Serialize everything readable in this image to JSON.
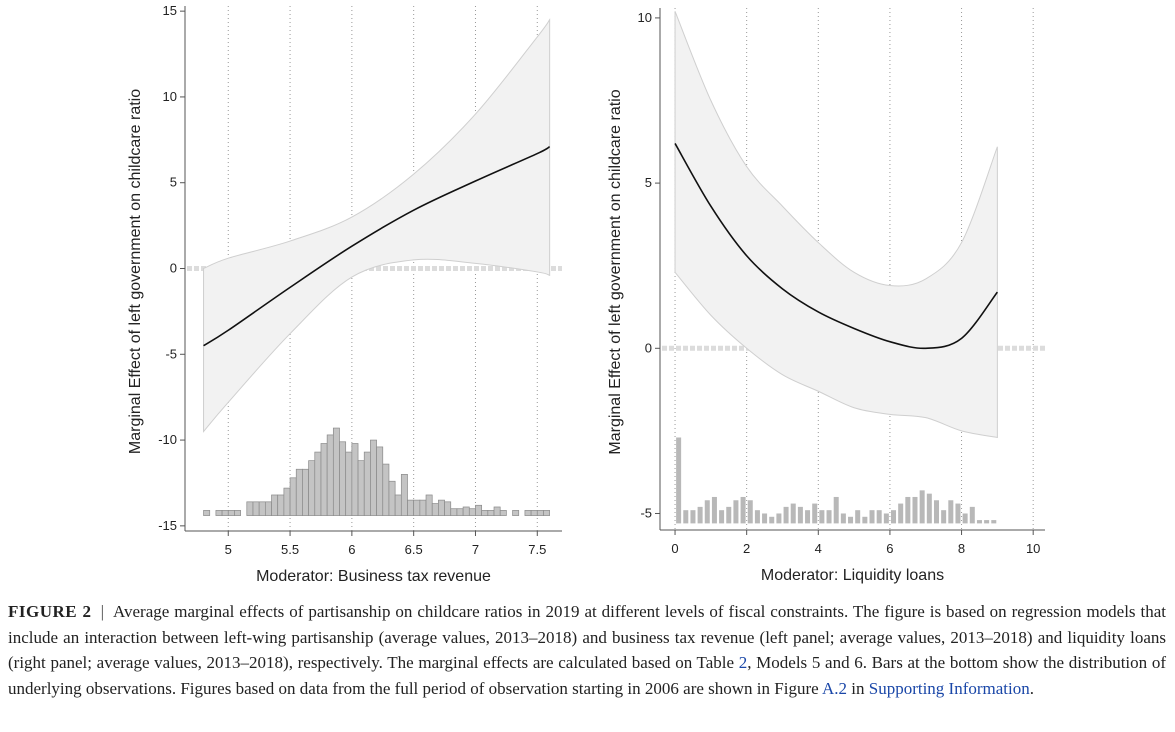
{
  "chart_data": [
    {
      "type": "line",
      "xlabel": "Moderator: Business tax revenue",
      "ylabel": "Marginal Effect of left government on childcare ratio",
      "xlim": [
        4.65,
        7.7
      ],
      "ylim": [
        -15.3,
        15.3
      ],
      "xticks": [
        5,
        5.5,
        6,
        6.5,
        7,
        7.5
      ],
      "yticks": [
        -15,
        -10,
        -5,
        0,
        5,
        10,
        15
      ],
      "grid_x": true,
      "ref_line": 0,
      "color": "#111111",
      "band_color": "#f2f2f2",
      "hist_color": "#c4c4c4",
      "x": [
        4.8,
        5,
        5.5,
        6,
        6.5,
        7,
        7.5,
        7.6
      ],
      "values": [
        -4.5,
        -3.6,
        -1.1,
        1.3,
        3.4,
        5.1,
        6.7,
        7.1
      ],
      "ci_upper": [
        0.0,
        0.6,
        1.6,
        3.0,
        5.5,
        9.0,
        13.5,
        14.5
      ],
      "ci_lower": [
        -9.5,
        -7.8,
        -3.8,
        -0.5,
        0.5,
        0.3,
        -0.2,
        -0.4
      ],
      "hist": {
        "base": -14.4,
        "bins": [
          4.8,
          4.85,
          4.9,
          4.95,
          5,
          5.05,
          5.1,
          5.15,
          5.2,
          5.25,
          5.3,
          5.35,
          5.4,
          5.45,
          5.5,
          5.55,
          5.6,
          5.65,
          5.7,
          5.75,
          5.8,
          5.85,
          5.9,
          5.95,
          6,
          6.05,
          6.1,
          6.15,
          6.2,
          6.25,
          6.3,
          6.35,
          6.4,
          6.45,
          6.5,
          6.55,
          6.6,
          6.65,
          6.7,
          6.75,
          6.8,
          6.85,
          6.9,
          6.95,
          7,
          7.05,
          7.1,
          7.15,
          7.2,
          7.25,
          7.3,
          7.35,
          7.4,
          7.45,
          7.5,
          7.55,
          7.6
        ],
        "values": [
          -14.1,
          -14.4,
          -14.1,
          -14.1,
          -14.1,
          -14.1,
          -14.4,
          -13.6,
          -13.6,
          -13.6,
          -13.6,
          -13.2,
          -13.2,
          -12.8,
          -12.2,
          -11.7,
          -11.7,
          -11.2,
          -10.7,
          -10.2,
          -9.7,
          -9.3,
          -10.1,
          -10.7,
          -10.2,
          -11.2,
          -10.7,
          -10.0,
          -10.4,
          -11.4,
          -12.4,
          -13.2,
          -12.0,
          -13.5,
          -13.5,
          -13.5,
          -13.2,
          -13.7,
          -13.5,
          -13.6,
          -14.0,
          -14.0,
          -13.9,
          -14.0,
          -13.8,
          -14.1,
          -14.1,
          -13.9,
          -14.1,
          -14.4,
          -14.1,
          -14.4,
          -14.1,
          -14.1,
          -14.1,
          -14.1
        ]
      }
    },
    {
      "type": "line",
      "xlabel": "Moderator: Liquidity loans",
      "ylabel": "Marginal Effect of left government on childcare ratio",
      "xlim": [
        -0.42,
        10.33
      ],
      "ylim": [
        -5.5,
        10.3
      ],
      "xticks": [
        0,
        2,
        4,
        6,
        8,
        10
      ],
      "yticks": [
        -5,
        0,
        5,
        10
      ],
      "grid_x": true,
      "ref_line": 0,
      "color": "#111111",
      "band_color": "#f2f2f2",
      "hist_color": "#b8b8b8",
      "x": [
        0,
        1,
        2,
        3,
        4,
        5,
        6,
        7,
        8,
        9
      ],
      "values": [
        6.2,
        4.3,
        2.8,
        1.8,
        1.1,
        0.6,
        0.2,
        0.0,
        0.3,
        1.7
      ],
      "ci_upper": [
        10.2,
        7.5,
        5.5,
        4.3,
        3.2,
        2.3,
        1.9,
        2.1,
        3.2,
        6.1
      ],
      "ci_lower": [
        2.3,
        1.0,
        0.0,
        -0.8,
        -1.3,
        -1.8,
        -2.0,
        -2.1,
        -2.5,
        -2.7
      ],
      "hist": {
        "base": -5.3,
        "bins": [
          0,
          0.2,
          0.4,
          0.6,
          0.8,
          1,
          1.2,
          1.4,
          1.6,
          1.8,
          2,
          2.2,
          2.4,
          2.6,
          2.8,
          3,
          3.2,
          3.4,
          3.6,
          3.8,
          4,
          4.2,
          4.4,
          4.6,
          4.8,
          5,
          5.2,
          5.4,
          5.6,
          5.8,
          6,
          6.2,
          6.4,
          6.6,
          6.8,
          7,
          7.2,
          7.4,
          7.6,
          7.8,
          8,
          8.2,
          8.4,
          8.6,
          8.8,
          9
        ],
        "values": [
          -2.7,
          -4.9,
          -4.9,
          -4.8,
          -4.6,
          -4.5,
          -4.9,
          -4.8,
          -4.6,
          -4.5,
          -4.6,
          -4.9,
          -5.0,
          -5.1,
          -5.0,
          -4.8,
          -4.7,
          -4.8,
          -4.9,
          -4.7,
          -4.9,
          -4.9,
          -4.5,
          -5.0,
          -5.1,
          -4.9,
          -5.1,
          -4.9,
          -4.9,
          -5.0,
          -4.9,
          -4.7,
          -4.5,
          -4.5,
          -4.3,
          -4.4,
          -4.6,
          -4.9,
          -4.6,
          -4.7,
          -5.0,
          -4.8,
          -5.2,
          -5.2,
          -5.2
        ]
      }
    }
  ],
  "caption": {
    "label": "FIGURE 2",
    "separator": "|",
    "segments": [
      {
        "text": "Average marginal effects of partisanship on childcare ratios in 2019 at different levels of fiscal constraints. The figure is based on regression models that include an interaction between left-wing partisanship (average values, 2013–2018) and business tax revenue (left panel; average values, 2013–2018) and liquidity loans (right panel; average values, 2013–2018), respectively. The marginal effects are calculated based on Table ",
        "link": false
      },
      {
        "text": "2",
        "link": true
      },
      {
        "text": ", Models 5 and 6. Bars at the bottom show the distribution of underlying observations. Figures based on data from the full period of observation starting in 2006 are shown in Figure ",
        "link": false
      },
      {
        "text": "A.2",
        "link": true
      },
      {
        "text": " in ",
        "link": false
      },
      {
        "text": "Supporting Information",
        "link": true
      },
      {
        "text": ".",
        "link": false
      }
    ]
  }
}
